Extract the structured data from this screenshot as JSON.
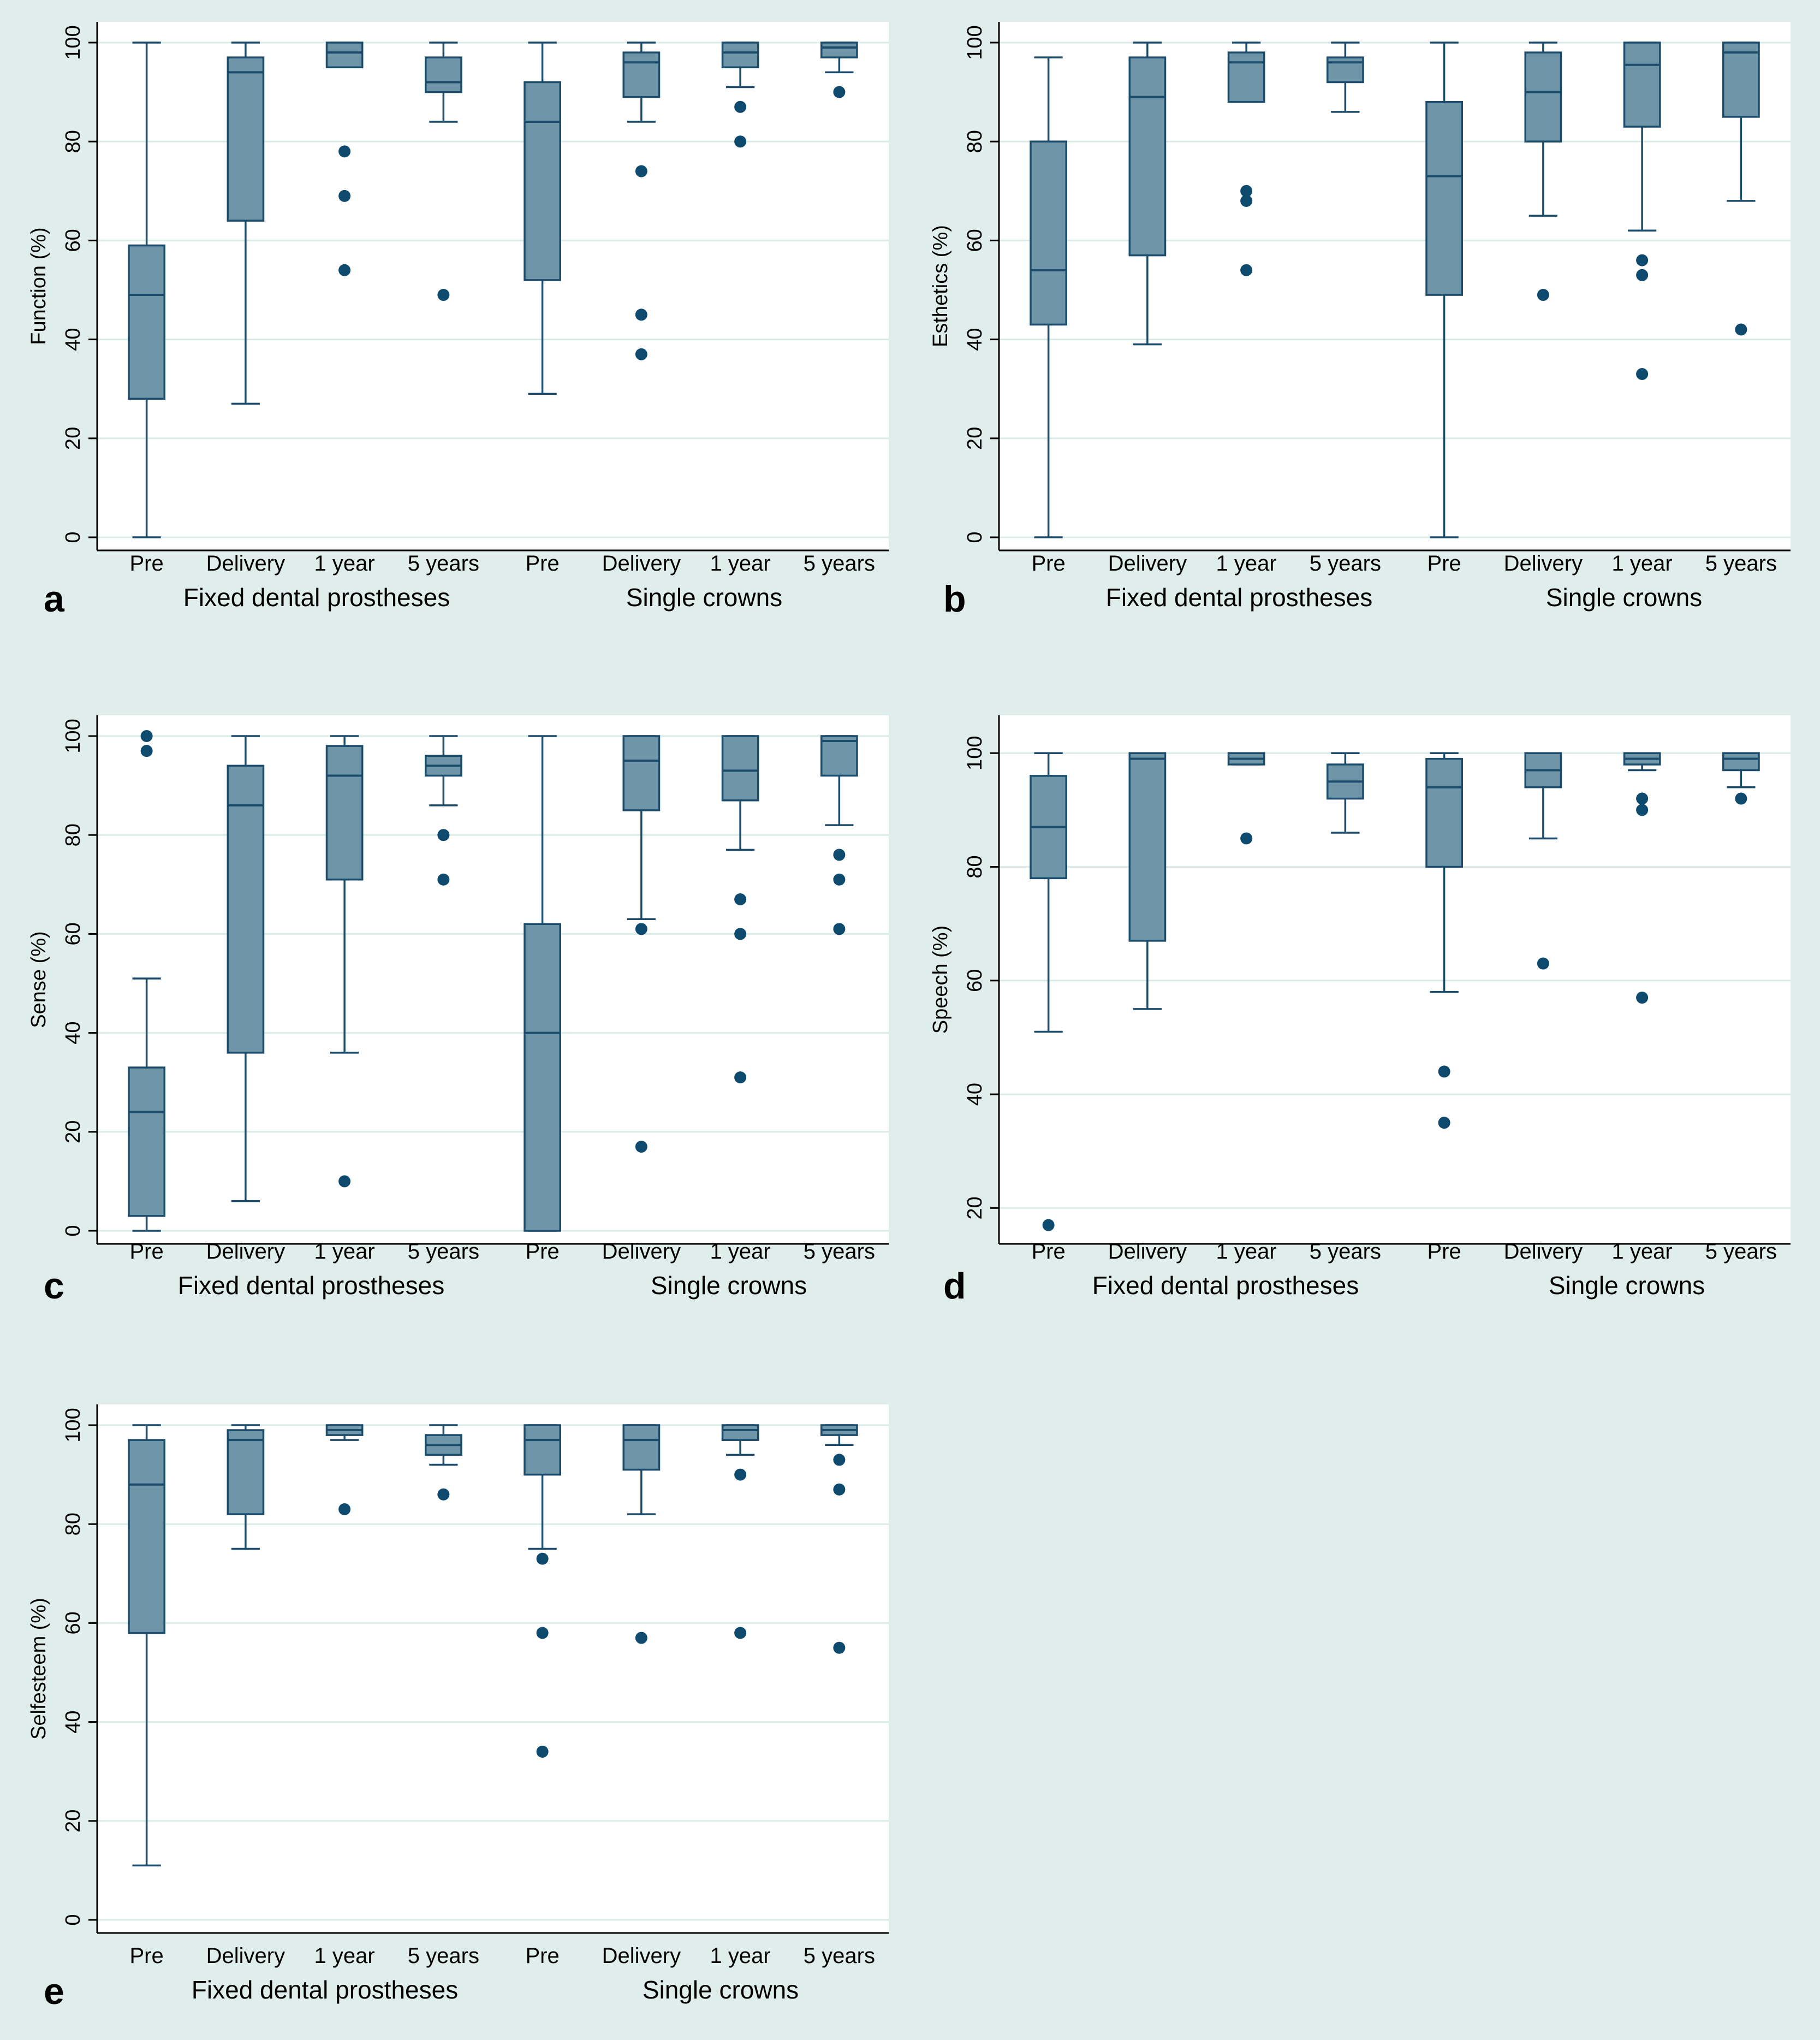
{
  "colors": {
    "background": "#dfeeeb",
    "plot_bg": "#ffffff",
    "box_fill": "#6f95a9",
    "box_stroke": "#1c4c6b",
    "whisker": "#1c4c6b",
    "outlier": "#0e4a6e",
    "grid": "#d9ece8",
    "axis": "#000000"
  },
  "chart_data": [
    {
      "panel_label": "a",
      "type": "box",
      "ylabel": "Function (%)",
      "ylim": [
        0,
        100
      ],
      "yticks": [
        "0",
        "20",
        "40",
        "60",
        "80",
        "100"
      ],
      "categories": [
        "Pre",
        "Delivery",
        "1 year",
        "5 years",
        "Pre",
        "Delivery",
        "1 year",
        "5 years"
      ],
      "groups": [
        "Fixed dental prostheses",
        "Single crowns"
      ],
      "boxes": [
        {
          "min": 0,
          "q1": 28,
          "median": 49,
          "q3": 59,
          "max": 100,
          "outliers": []
        },
        {
          "min": 27,
          "q1": 64,
          "median": 94,
          "q3": 97,
          "max": 100,
          "outliers": []
        },
        {
          "min": 95,
          "q1": 95,
          "median": 98,
          "q3": 100,
          "max": 100,
          "outliers": [
            78,
            69,
            54
          ]
        },
        {
          "min": 84,
          "q1": 90,
          "median": 92,
          "q3": 97,
          "max": 100,
          "outliers": [
            49
          ]
        },
        {
          "min": 29,
          "q1": 52,
          "median": 84,
          "q3": 92,
          "max": 100,
          "outliers": []
        },
        {
          "min": 84,
          "q1": 89,
          "median": 96,
          "q3": 98,
          "max": 100,
          "outliers": [
            74,
            45,
            37
          ]
        },
        {
          "min": 91,
          "q1": 95,
          "median": 98,
          "q3": 100,
          "max": 100,
          "outliers": [
            87,
            80
          ]
        },
        {
          "min": 94,
          "q1": 97,
          "median": 99,
          "q3": 100,
          "max": 100,
          "outliers": [
            90
          ]
        }
      ]
    },
    {
      "panel_label": "b",
      "type": "box",
      "ylabel": "Esthetics (%)",
      "ylim": [
        0,
        100
      ],
      "yticks": [
        "0",
        "20",
        "40",
        "60",
        "80",
        "100"
      ],
      "categories": [
        "Pre",
        "Delivery",
        "1 year",
        "5 years",
        "Pre",
        "Delivery",
        "1 year",
        "5 years"
      ],
      "groups": [
        "Fixed dental prostheses",
        "Single crowns"
      ],
      "boxes": [
        {
          "min": 0,
          "q1": 43,
          "median": 54,
          "q3": 80,
          "max": 97,
          "outliers": []
        },
        {
          "min": 39,
          "q1": 57,
          "median": 89,
          "q3": 97,
          "max": 100,
          "outliers": []
        },
        {
          "min": 88,
          "q1": 88,
          "median": 96,
          "q3": 98,
          "max": 100,
          "outliers": [
            70,
            68,
            54
          ]
        },
        {
          "min": 86,
          "q1": 92,
          "median": 96,
          "q3": 97,
          "max": 100,
          "outliers": []
        },
        {
          "min": 0,
          "q1": 49,
          "median": 73,
          "q3": 88,
          "max": 100,
          "outliers": []
        },
        {
          "min": 65,
          "q1": 80,
          "median": 90,
          "q3": 98,
          "max": 100,
          "outliers": [
            49
          ]
        },
        {
          "min": 62,
          "q1": 83,
          "median": 95.5,
          "q3": 100,
          "max": 100,
          "outliers": [
            56,
            53,
            33
          ]
        },
        {
          "min": 68,
          "q1": 85,
          "median": 98,
          "q3": 100,
          "max": 100,
          "outliers": [
            42
          ]
        }
      ]
    },
    {
      "panel_label": "c",
      "type": "box",
      "ylabel": "Sense (%)",
      "ylim": [
        0,
        100
      ],
      "yticks": [
        "0",
        "20",
        "40",
        "60",
        "80",
        "100"
      ],
      "categories": [
        "Pre",
        "Delivery",
        "1 year",
        "5 years",
        "Pre",
        "Delivery",
        "1 year",
        "5 years"
      ],
      "groups": [
        "Fixed dental prostheses",
        "Single crowns"
      ],
      "boxes": [
        {
          "min": 0,
          "q1": 3,
          "median": 24,
          "q3": 33,
          "max": 51,
          "outliers": [
            100,
            97
          ]
        },
        {
          "min": 6,
          "q1": 36,
          "median": 86,
          "q3": 94,
          "max": 100,
          "outliers": []
        },
        {
          "min": 36,
          "q1": 71,
          "median": 92,
          "q3": 98,
          "max": 100,
          "outliers": [
            10
          ]
        },
        {
          "min": 86,
          "q1": 92,
          "median": 94,
          "q3": 96,
          "max": 100,
          "outliers": [
            80,
            71
          ]
        },
        {
          "min": 0,
          "q1": 0,
          "median": 40,
          "q3": 62,
          "max": 100,
          "outliers": []
        },
        {
          "min": 63,
          "q1": 85,
          "median": 95,
          "q3": 100,
          "max": 100,
          "outliers": [
            61,
            17
          ]
        },
        {
          "min": 77,
          "q1": 87,
          "median": 93,
          "q3": 100,
          "max": 100,
          "outliers": [
            67,
            60,
            31
          ]
        },
        {
          "min": 82,
          "q1": 92,
          "median": 99,
          "q3": 100,
          "max": 100,
          "outliers": [
            76,
            71,
            61
          ]
        }
      ]
    },
    {
      "panel_label": "d",
      "type": "box",
      "ylabel": "Speech (%)",
      "ylim": [
        16,
        103
      ],
      "tickvals": [
        20,
        40,
        60,
        80,
        100
      ],
      "yticks": [
        "20",
        "40",
        "60",
        "80",
        "100"
      ],
      "categories": [
        "Pre",
        "Delivery",
        "1 year",
        "5 years",
        "Pre",
        "Delivery",
        "1 year",
        "5 years"
      ],
      "groups": [
        "Fixed dental prostheses",
        "Single crowns"
      ],
      "boxes": [
        {
          "min": 51,
          "q1": 78,
          "median": 87,
          "q3": 96,
          "max": 100,
          "outliers": [
            17
          ]
        },
        {
          "min": 55,
          "q1": 67,
          "median": 99,
          "q3": 100,
          "max": 100,
          "outliers": []
        },
        {
          "min": 98,
          "q1": 98,
          "median": 99,
          "q3": 100,
          "max": 100,
          "outliers": [
            85
          ]
        },
        {
          "min": 86,
          "q1": 92,
          "median": 95,
          "q3": 98,
          "max": 100,
          "outliers": []
        },
        {
          "min": 58,
          "q1": 80,
          "median": 94,
          "q3": 99,
          "max": 100,
          "outliers": [
            44,
            35
          ]
        },
        {
          "min": 85,
          "q1": 94,
          "median": 97,
          "q3": 100,
          "max": 100,
          "outliers": [
            63
          ]
        },
        {
          "min": 97,
          "q1": 98,
          "median": 99,
          "q3": 100,
          "max": 100,
          "outliers": [
            92,
            90,
            57
          ]
        },
        {
          "min": 94,
          "q1": 97,
          "median": 99,
          "q3": 100,
          "max": 100,
          "outliers": [
            92
          ]
        }
      ]
    },
    {
      "panel_label": "e",
      "type": "box",
      "ylabel": "Selfesteem (%)",
      "ylim": [
        0,
        100
      ],
      "yticks": [
        "0",
        "20",
        "40",
        "60",
        "80",
        "100"
      ],
      "categories": [
        "Pre",
        "Delivery",
        "1 year",
        "5 years",
        "Pre",
        "Delivery",
        "1 year",
        "5 years"
      ],
      "groups": [
        "Fixed dental prostheses",
        "Single crowns"
      ],
      "boxes": [
        {
          "min": 11,
          "q1": 58,
          "median": 88,
          "q3": 97,
          "max": 100,
          "outliers": []
        },
        {
          "min": 75,
          "q1": 82,
          "median": 97,
          "q3": 99,
          "max": 100,
          "outliers": []
        },
        {
          "min": 97,
          "q1": 98,
          "median": 99,
          "q3": 100,
          "max": 100,
          "outliers": [
            83
          ]
        },
        {
          "min": 92,
          "q1": 94,
          "median": 96,
          "q3": 98,
          "max": 100,
          "outliers": [
            86
          ]
        },
        {
          "min": 75,
          "q1": 90,
          "median": 97,
          "q3": 100,
          "max": 100,
          "outliers": [
            73,
            58,
            34
          ]
        },
        {
          "min": 82,
          "q1": 91,
          "median": 97,
          "q3": 100,
          "max": 100,
          "outliers": [
            57
          ]
        },
        {
          "min": 94,
          "q1": 97,
          "median": 99,
          "q3": 100,
          "max": 100,
          "outliers": [
            90,
            58
          ]
        },
        {
          "min": 96,
          "q1": 98,
          "median": 99,
          "q3": 100,
          "max": 100,
          "outliers": [
            93,
            87,
            55
          ]
        }
      ]
    }
  ]
}
